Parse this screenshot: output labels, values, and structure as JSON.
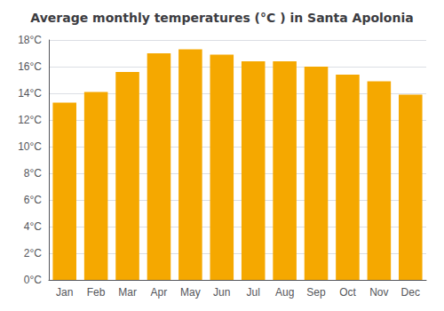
{
  "chart_data": {
    "type": "bar",
    "title": "Average monthly temperatures (°C ) in Santa Apolonia",
    "categories": [
      "Jan",
      "Feb",
      "Mar",
      "Apr",
      "May",
      "Jun",
      "Jul",
      "Aug",
      "Sep",
      "Oct",
      "Nov",
      "Dec"
    ],
    "values": [
      13.3,
      14.1,
      15.6,
      17.0,
      17.3,
      16.9,
      16.4,
      16.4,
      16.0,
      15.4,
      14.9,
      13.9
    ],
    "color": "#F5A800",
    "ylim": [
      0,
      18
    ],
    "yticks": [
      {
        "value": 0,
        "label": "0°C"
      },
      {
        "value": 2,
        "label": "2°C"
      },
      {
        "value": 4,
        "label": "4°C"
      },
      {
        "value": 6,
        "label": "6°C"
      },
      {
        "value": 8,
        "label": "8°C"
      },
      {
        "value": 10,
        "label": "10°C"
      },
      {
        "value": 12,
        "label": "12°C"
      },
      {
        "value": 14,
        "label": "14°C"
      },
      {
        "value": 16,
        "label": "16°C"
      },
      {
        "value": 18,
        "label": "18°C"
      }
    ],
    "grid": true
  }
}
